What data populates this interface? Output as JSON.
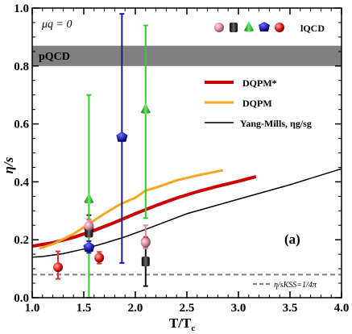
{
  "chart_data": {
    "type": "scatter",
    "xlabel": "T/T",
    "xlabel_sub": "c",
    "ylabel": "η/s",
    "xlim": [
      1.0,
      4.0
    ],
    "ylim": [
      0.0,
      1.0
    ],
    "xticks": [
      "1.0",
      "1.5",
      "2.0",
      "2.5",
      "3.0",
      "3.5",
      "4.0"
    ],
    "yticks": [
      "0.0",
      "0.2",
      "0.4",
      "0.6",
      "0.8",
      "1.0"
    ],
    "annotations": {
      "mu_q": "μq = 0",
      "pqcd": "pQCD",
      "panel": "(a)",
      "kss": "η/sKSS=1/4π",
      "lqcd_legend": "lQCD"
    },
    "pqcd_band": {
      "ymin": 0.8,
      "ymax": 0.87,
      "color": "#808080"
    },
    "kss_line": {
      "y": 0.0796,
      "color": "#808080"
    },
    "lines": [
      {
        "name": "DQPM*",
        "color": "#cc0000",
        "x": [
          1.0,
          1.2,
          1.4,
          1.6,
          1.8,
          2.0,
          2.2,
          2.4,
          2.6,
          2.8,
          3.0,
          3.17
        ],
        "y": [
          0.178,
          0.19,
          0.208,
          0.232,
          0.26,
          0.29,
          0.318,
          0.344,
          0.366,
          0.385,
          0.402,
          0.418
        ]
      },
      {
        "name": "DQPM",
        "color": "#f5a623",
        "x": [
          1.07,
          1.2,
          1.4,
          1.55,
          1.7,
          1.85,
          2.0,
          2.1,
          2.2,
          2.4,
          2.6,
          2.85
        ],
        "y": [
          0.17,
          0.185,
          0.22,
          0.255,
          0.29,
          0.322,
          0.345,
          0.37,
          0.38,
          0.405,
          0.422,
          0.44
        ]
      },
      {
        "name": "Yang-Mills, ηg/sg",
        "color": "#000000",
        "x": [
          1.0,
          1.1,
          1.3,
          1.5,
          1.7,
          1.9,
          2.1,
          2.5,
          3.0,
          3.5,
          4.0
        ],
        "y": [
          0.14,
          0.142,
          0.152,
          0.168,
          0.188,
          0.21,
          0.236,
          0.29,
          0.34,
          0.39,
          0.445
        ]
      }
    ],
    "points": [
      {
        "shape": "sphere",
        "color": "#e53030",
        "x": 1.25,
        "y": 0.105,
        "ylo": 0.065,
        "yhi": 0.16
      },
      {
        "shape": "sphere",
        "color": "#e53030",
        "x": 1.55,
        "y": 0.24,
        "ylo": 0.21,
        "yhi": 0.27
      },
      {
        "shape": "sphere",
        "color": "#e53030",
        "x": 1.65,
        "y": 0.138,
        "ylo": 0.118,
        "yhi": 0.158
      },
      {
        "shape": "sphere",
        "color": "#e53030",
        "x": 2.1,
        "y": 0.193,
        "ylo": 0.175,
        "yhi": 0.21
      },
      {
        "shape": "cup",
        "color": "#111111",
        "x": 1.55,
        "y": 0.225,
        "ylo": 0.165,
        "yhi": 0.285
      },
      {
        "shape": "cup",
        "color": "#111111",
        "x": 2.1,
        "y": 0.125,
        "ylo": 0.04,
        "yhi": 0.205
      },
      {
        "shape": "cone",
        "color": "#33cc33",
        "x": 1.55,
        "y": 0.34,
        "ylo": 0.0,
        "yhi": 0.7
      },
      {
        "shape": "cone",
        "color": "#33cc33",
        "x": 2.1,
        "y": 0.65,
        "ylo": 0.275,
        "yhi": 0.94
      },
      {
        "shape": "pentagon",
        "color": "#1a1aa6",
        "x": 1.55,
        "y": 0.175,
        "ylo": 0.155,
        "yhi": 0.195
      },
      {
        "shape": "pentagon",
        "color": "#1a1aa6",
        "x": 1.87,
        "y": 0.555,
        "ylo": 0.12,
        "yhi": 0.98
      },
      {
        "shape": "pink",
        "color": "#d88aa0",
        "x": 1.55,
        "y": 0.248,
        "ylo": 0.228,
        "yhi": 0.268
      },
      {
        "shape": "pink",
        "color": "#d88aa0",
        "x": 2.1,
        "y": 0.19,
        "ylo": 0.17,
        "yhi": 0.25
      }
    ]
  }
}
